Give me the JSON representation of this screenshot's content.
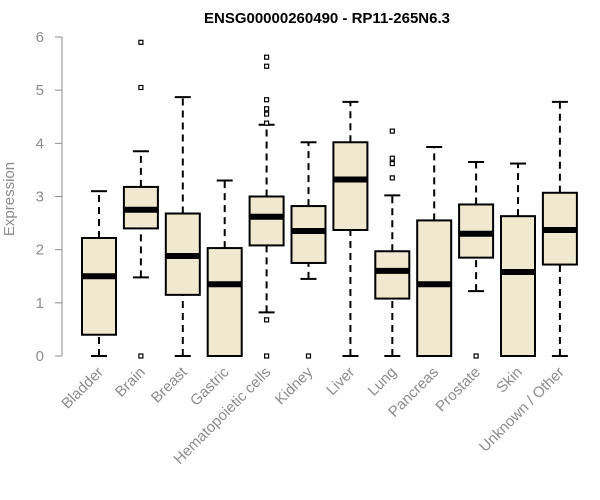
{
  "chart_data": {
    "type": "boxplot",
    "title": "ENSG00000260490 - RP11-265N6.3",
    "ylabel": "Expression",
    "ylim": [
      0,
      6
    ],
    "yticks": [
      "0",
      "1",
      "2",
      "3",
      "4",
      "5",
      "6"
    ],
    "box_fill": "#efe9cf",
    "box_stroke": "#000000",
    "grid": false,
    "categories": [
      "Bladder",
      "Brain",
      "Breast",
      "Gastric",
      "Hematopoietic cells",
      "Kidney",
      "Liver",
      "Lung",
      "Pancreas",
      "Prostate",
      "Skin",
      "Unknown / Other"
    ],
    "boxes": [
      {
        "category": "Bladder",
        "whisker_low": 0.0,
        "q1": 0.4,
        "median": 1.5,
        "q3": 2.22,
        "whisker_high": 3.1,
        "outliers": []
      },
      {
        "category": "Brain",
        "whisker_low": 1.48,
        "q1": 2.4,
        "median": 2.75,
        "q3": 3.18,
        "whisker_high": 3.85,
        "outliers": [
          0.0,
          5.05,
          5.9
        ]
      },
      {
        "category": "Breast",
        "whisker_low": 0.0,
        "q1": 1.15,
        "median": 1.88,
        "q3": 2.68,
        "whisker_high": 4.87,
        "outliers": []
      },
      {
        "category": "Gastric",
        "whisker_low": 0.0,
        "q1": 0.0,
        "median": 1.35,
        "q3": 2.03,
        "whisker_high": 3.3,
        "outliers": []
      },
      {
        "category": "Hematopoietic cells",
        "whisker_low": 0.82,
        "q1": 2.08,
        "median": 2.62,
        "q3": 3.0,
        "whisker_high": 4.35,
        "outliers": [
          0.0,
          0.68,
          4.38,
          4.55,
          4.65,
          4.82,
          5.45,
          5.62
        ]
      },
      {
        "category": "Kidney",
        "whisker_low": 1.45,
        "q1": 1.75,
        "median": 2.35,
        "q3": 2.82,
        "whisker_high": 4.02,
        "outliers": [
          0.0
        ]
      },
      {
        "category": "Liver",
        "whisker_low": 0.0,
        "q1": 2.37,
        "median": 3.32,
        "q3": 4.02,
        "whisker_high": 4.78,
        "outliers": []
      },
      {
        "category": "Lung",
        "whisker_low": 0.0,
        "q1": 1.08,
        "median": 1.6,
        "q3": 1.97,
        "whisker_high": 3.02,
        "outliers": [
          3.35,
          3.62,
          3.72,
          4.23
        ]
      },
      {
        "category": "Pancreas",
        "whisker_low": 0.0,
        "q1": 0.0,
        "median": 1.35,
        "q3": 2.55,
        "whisker_high": 3.93,
        "outliers": []
      },
      {
        "category": "Prostate",
        "whisker_low": 1.22,
        "q1": 1.85,
        "median": 2.3,
        "q3": 2.85,
        "whisker_high": 3.65,
        "outliers": [
          0.0
        ]
      },
      {
        "category": "Skin",
        "whisker_low": 0.0,
        "q1": 0.0,
        "median": 1.58,
        "q3": 2.63,
        "whisker_high": 3.62,
        "outliers": []
      },
      {
        "category": "Unknown / Other",
        "whisker_low": 0.0,
        "q1": 1.72,
        "median": 2.37,
        "q3": 3.07,
        "whisker_high": 4.78,
        "outliers": []
      }
    ]
  }
}
